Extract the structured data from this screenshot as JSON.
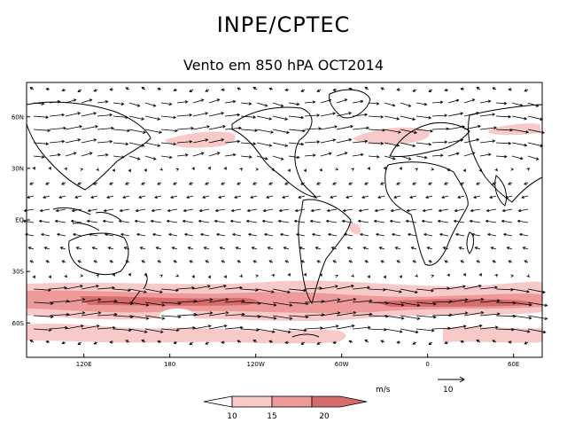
{
  "header": {
    "title": "INPE/CPTEC",
    "subtitle": "Vento em 850 hPA OCT2014"
  },
  "axes": {
    "lat_labels": [
      "60N",
      "30N",
      "EQ",
      "30S",
      "60S"
    ],
    "lat_values": [
      60,
      30,
      0,
      -30,
      -60
    ],
    "lon_labels": [
      "120E",
      "180",
      "120W",
      "60W",
      "0",
      "60E"
    ],
    "lon_values": [
      120,
      180,
      240,
      300,
      360,
      420
    ],
    "lat_range": [
      -80,
      80
    ],
    "lon_range": [
      80,
      440
    ]
  },
  "legend": {
    "units": "m/s",
    "ref_vector": "10",
    "ticks": [
      "10",
      "15",
      "20"
    ],
    "colors": [
      "#ffffff",
      "#f7c9c9",
      "#ef9a9a",
      "#d66b6b"
    ]
  },
  "colors": {
    "coast": "#000000",
    "vector": "#000000",
    "shade_light": "#f7c9c9",
    "shade_mid": "#ef9a9a",
    "shade_dark": "#d66b6b"
  }
}
